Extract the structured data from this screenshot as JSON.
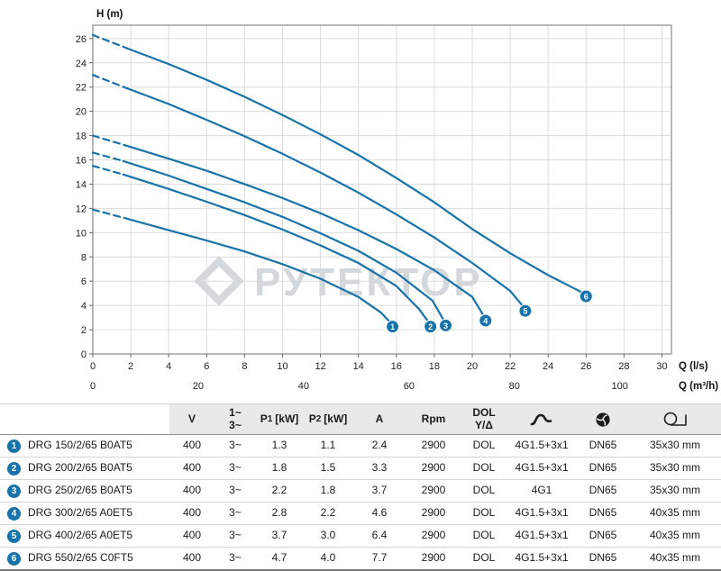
{
  "chart_data": {
    "type": "line",
    "title": "",
    "ylabel": "H (m)",
    "xlabel_primary": "Q (l/s)",
    "xlabel_secondary": "Q (m³/h)",
    "watermark": "РУТЕКТОР",
    "color": "#1873aa",
    "grid": true,
    "legend_position": "none",
    "xlim": [
      0,
      30.5
    ],
    "ylim": [
      0,
      27.1
    ],
    "y_ticks": [
      0,
      2,
      4,
      6,
      8,
      10,
      12,
      14,
      16,
      18,
      20,
      22,
      24,
      26
    ],
    "x_ticks_ls": [
      0,
      2,
      4,
      6,
      8,
      10,
      12,
      14,
      16,
      18,
      20,
      22,
      24,
      26,
      28,
      30
    ],
    "x_ticks_m3h": [
      0,
      20,
      40,
      60,
      80,
      100
    ],
    "series": [
      {
        "name": "1",
        "model": "DRG 150/2/65 B0AT5",
        "dashed": [
          [
            0,
            11.9
          ],
          [
            1.8,
            11.15
          ]
        ],
        "solid": [
          [
            1.8,
            11.15
          ],
          [
            4,
            10.2
          ],
          [
            6,
            9.35
          ],
          [
            8,
            8.45
          ],
          [
            10,
            7.4
          ],
          [
            12,
            6.2
          ],
          [
            14,
            4.7
          ],
          [
            15.2,
            3.4
          ],
          [
            15.8,
            2.4
          ]
        ]
      },
      {
        "name": "2",
        "model": "DRG 200/2/65 B0AT5",
        "dashed": [
          [
            0,
            15.5
          ],
          [
            1.6,
            14.8
          ]
        ],
        "solid": [
          [
            1.6,
            14.8
          ],
          [
            4,
            13.6
          ],
          [
            6,
            12.55
          ],
          [
            8,
            11.45
          ],
          [
            10,
            10.25
          ],
          [
            12,
            8.95
          ],
          [
            14,
            7.5
          ],
          [
            16,
            5.6
          ],
          [
            17.2,
            3.7
          ],
          [
            17.8,
            2.4
          ]
        ]
      },
      {
        "name": "3",
        "model": "DRG 250/2/65 B0AT5",
        "dashed": [
          [
            0,
            16.6
          ],
          [
            1.6,
            15.9
          ]
        ],
        "solid": [
          [
            1.6,
            15.9
          ],
          [
            4,
            14.7
          ],
          [
            6,
            13.6
          ],
          [
            8,
            12.5
          ],
          [
            10,
            11.3
          ],
          [
            12,
            9.95
          ],
          [
            14,
            8.5
          ],
          [
            16,
            6.7
          ],
          [
            17.9,
            4.4
          ],
          [
            18.6,
            2.5
          ]
        ]
      },
      {
        "name": "4",
        "model": "DRG 300/2/65 A0ET5",
        "dashed": [
          [
            0,
            18.0
          ],
          [
            1.7,
            17.2
          ]
        ],
        "solid": [
          [
            1.7,
            17.2
          ],
          [
            4,
            16.1
          ],
          [
            6,
            15.1
          ],
          [
            8,
            14.0
          ],
          [
            10,
            12.85
          ],
          [
            12,
            11.6
          ],
          [
            14,
            10.2
          ],
          [
            16,
            8.65
          ],
          [
            18,
            6.9
          ],
          [
            20,
            4.7
          ],
          [
            20.7,
            2.9
          ]
        ]
      },
      {
        "name": "5",
        "model": "DRG 400/2/65 A0ET5",
        "dashed": [
          [
            0,
            23.0
          ],
          [
            1.8,
            21.9
          ]
        ],
        "solid": [
          [
            1.8,
            21.9
          ],
          [
            4,
            20.6
          ],
          [
            6,
            19.3
          ],
          [
            8,
            17.95
          ],
          [
            10,
            16.5
          ],
          [
            12,
            14.95
          ],
          [
            14,
            13.3
          ],
          [
            16,
            11.5
          ],
          [
            18,
            9.6
          ],
          [
            20,
            7.5
          ],
          [
            22,
            5.2
          ],
          [
            22.8,
            3.7
          ]
        ]
      },
      {
        "name": "6",
        "model": "DRG 550/2/65 C0FT5",
        "dashed": [
          [
            0,
            26.3
          ],
          [
            1.8,
            25.2
          ]
        ],
        "solid": [
          [
            1.8,
            25.2
          ],
          [
            4,
            23.9
          ],
          [
            6,
            22.6
          ],
          [
            8,
            21.2
          ],
          [
            10,
            19.7
          ],
          [
            12,
            18.1
          ],
          [
            14,
            16.4
          ],
          [
            16,
            14.5
          ],
          [
            18,
            12.5
          ],
          [
            20,
            10.3
          ],
          [
            22,
            8.3
          ],
          [
            24,
            6.5
          ],
          [
            26,
            4.9
          ]
        ]
      }
    ]
  },
  "table": {
    "headers": {
      "v": "V",
      "phase_top": "1~",
      "phase_bottom": "3~",
      "p1_main": "P",
      "p1_sub": "1",
      "p2_main": "P",
      "p2_sub": "2",
      "p_unit": "[kW]",
      "a": "A",
      "rpm": "Rpm",
      "dol_top": "DOL",
      "dol_bottom": "Y/Δ",
      "cable_icon": "power-cable",
      "impeller_icon": "impeller",
      "passage_icon": "free-passage"
    },
    "rows": [
      {
        "num": "1",
        "model": "DRG 150/2/65 B0AT5",
        "v": "400",
        "phase": "3~",
        "p1": "1.3",
        "p2": "1.1",
        "a": "2.4",
        "rpm": "2900",
        "start": "DOL",
        "cable": "4G1.5+3x1",
        "dn": "DN65",
        "passage": "35x30 mm"
      },
      {
        "num": "2",
        "model": "DRG 200/2/65 B0AT5",
        "v": "400",
        "phase": "3~",
        "p1": "1.8",
        "p2": "1.5",
        "a": "3.3",
        "rpm": "2900",
        "start": "DOL",
        "cable": "4G1.5+3x1",
        "dn": "DN65",
        "passage": "35x30 mm"
      },
      {
        "num": "3",
        "model": "DRG 250/2/65 B0AT5",
        "v": "400",
        "phase": "3~",
        "p1": "2.2",
        "p2": "1.8",
        "a": "3.7",
        "rpm": "2900",
        "start": "DOL",
        "cable": "4G1",
        "dn": "DN65",
        "passage": "35x30 mm"
      },
      {
        "num": "4",
        "model": "DRG 300/2/65 A0ET5",
        "v": "400",
        "phase": "3~",
        "p1": "2.8",
        "p2": "2.2",
        "a": "4.6",
        "rpm": "2900",
        "start": "DOL",
        "cable": "4G1.5+3x1",
        "dn": "DN65",
        "passage": "40x35 mm"
      },
      {
        "num": "5",
        "model": "DRG 400/2/65 A0ET5",
        "v": "400",
        "phase": "3~",
        "p1": "3.7",
        "p2": "3.0",
        "a": "6.4",
        "rpm": "2900",
        "start": "DOL",
        "cable": "4G1.5+3x1",
        "dn": "DN65",
        "passage": "40x35 mm"
      },
      {
        "num": "6",
        "model": "DRG 550/2/65 C0FT5",
        "v": "400",
        "phase": "3~",
        "p1": "4.7",
        "p2": "4.0",
        "a": "7.7",
        "rpm": "2900",
        "start": "DOL",
        "cable": "4G1.5+3x1",
        "dn": "DN65",
        "passage": "40x35 mm"
      }
    ]
  }
}
